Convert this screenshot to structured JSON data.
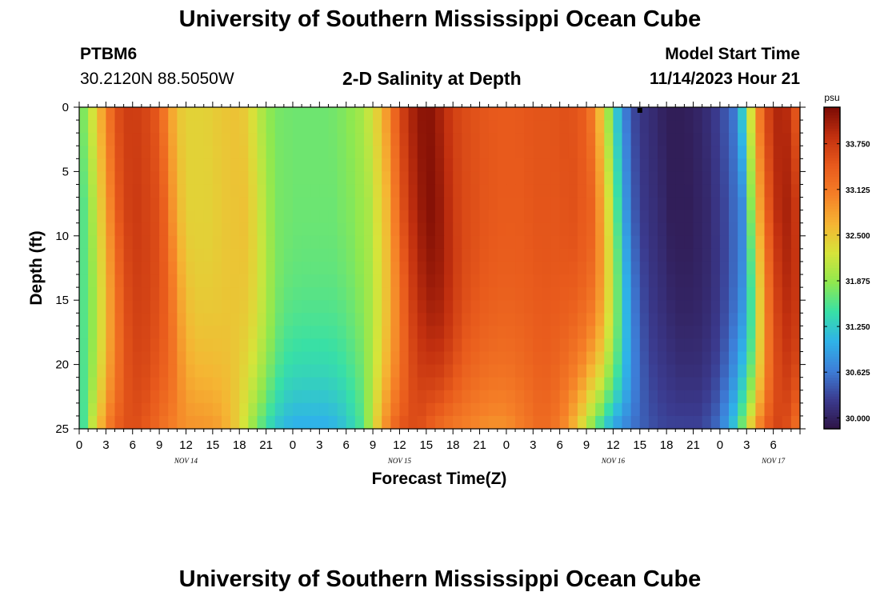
{
  "header": {
    "title": "University of Southern Mississippi Ocean Cube",
    "station": "PTBM6",
    "coords": "30.2120N  88.5050W",
    "subtitle": "2-D Salinity at Depth",
    "model_label": "Model Start Time",
    "model_time": "11/14/2023 Hour 21"
  },
  "footer": {
    "title": "University of Southern Mississippi Ocean Cube"
  },
  "colors": {
    "ramp": [
      "#2e1446",
      "#3b3b8f",
      "#3d7fd9",
      "#2fb3e8",
      "#38e0a6",
      "#8fe84f",
      "#d6e43a",
      "#f5b533",
      "#f57f27",
      "#e85a1c",
      "#c2300f",
      "#7a0b04"
    ]
  },
  "chart_data": {
    "type": "heatmap",
    "xlabel": "Forecast Time(Z)",
    "ylabel": "Depth (ft)",
    "x_range_hours_from_start": [
      0,
      81
    ],
    "x_ticks": [
      "0",
      "3",
      "6",
      "9",
      "12",
      "15",
      "18",
      "21",
      "0",
      "3",
      "6",
      "9",
      "12",
      "15",
      "18",
      "21",
      "0",
      "3",
      "6",
      "9",
      "12",
      "15",
      "18",
      "21",
      "0",
      "3",
      "6"
    ],
    "day_labels": [
      {
        "label": "NOV 14",
        "hour": 12
      },
      {
        "label": "NOV 15",
        "hour": 36
      },
      {
        "label": "NOV 16",
        "hour": 60
      },
      {
        "label": "NOV 17",
        "hour": 78
      }
    ],
    "y_ticks": [
      "0",
      "5",
      "10",
      "15",
      "20",
      "25"
    ],
    "ylim": [
      0,
      25
    ],
    "colorbar": {
      "units": "psu",
      "min": 29.85,
      "max": 34.25,
      "tick_values": [
        30.0,
        30.625,
        31.25,
        31.875,
        32.5,
        33.125,
        33.75
      ],
      "tick_labels": [
        "30.000",
        "30.625",
        "31.250",
        "31.875",
        "32.500",
        "33.125",
        "33.750"
      ]
    },
    "surface_profile": {
      "hours": [
        0,
        1,
        2,
        3,
        4,
        5,
        6,
        8,
        9,
        10,
        11,
        12,
        14,
        16,
        18,
        19,
        20,
        21,
        22,
        24,
        26,
        28,
        30,
        32,
        33,
        34,
        35,
        36,
        37,
        38,
        39,
        40,
        41,
        42,
        43,
        45,
        47,
        49,
        51,
        53,
        55,
        57,
        58,
        59,
        60,
        61,
        62,
        63,
        65,
        66,
        67,
        68,
        70,
        72,
        74,
        75,
        76,
        77,
        78,
        79,
        80,
        81
      ],
      "psu": [
        31.6,
        32.0,
        32.5,
        33.0,
        33.5,
        33.7,
        33.75,
        33.6,
        33.4,
        32.9,
        32.55,
        32.4,
        32.4,
        32.5,
        32.55,
        32.4,
        32.15,
        31.9,
        31.75,
        31.7,
        31.7,
        31.7,
        31.8,
        32.0,
        32.3,
        32.6,
        33.1,
        33.6,
        33.9,
        34.1,
        34.2,
        34.1,
        33.9,
        33.7,
        33.6,
        33.5,
        33.45,
        33.45,
        33.5,
        33.5,
        33.55,
        33.4,
        32.9,
        32.3,
        31.5,
        30.8,
        30.4,
        30.2,
        30.05,
        29.95,
        29.95,
        29.95,
        30.05,
        30.3,
        30.7,
        31.8,
        32.8,
        33.5,
        33.9,
        34.0,
        33.8,
        33.2
      ]
    },
    "bottom_profile": {
      "hours": [
        0,
        2,
        4,
        6,
        8,
        10,
        12,
        14,
        16,
        18,
        20,
        22,
        24,
        26,
        28,
        30,
        32,
        34,
        36,
        38,
        40,
        42,
        44,
        46,
        48,
        50,
        52,
        54,
        56,
        58,
        60,
        62,
        64,
        66,
        68,
        70,
        72,
        74,
        76,
        78,
        80,
        81
      ],
      "psu": [
        31.2,
        32.5,
        33.4,
        33.6,
        33.4,
        33.1,
        32.9,
        32.9,
        32.8,
        32.4,
        31.7,
        31.2,
        31.0,
        31.0,
        31.0,
        31.2,
        31.6,
        32.8,
        33.5,
        33.6,
        33.3,
        33.1,
        33.0,
        32.9,
        32.9,
        33.1,
        33.3,
        33.1,
        32.5,
        31.6,
        30.9,
        30.6,
        30.4,
        30.3,
        30.3,
        30.3,
        30.6,
        31.4,
        32.9,
        33.7,
        33.5,
        33.0
      ]
    }
  }
}
